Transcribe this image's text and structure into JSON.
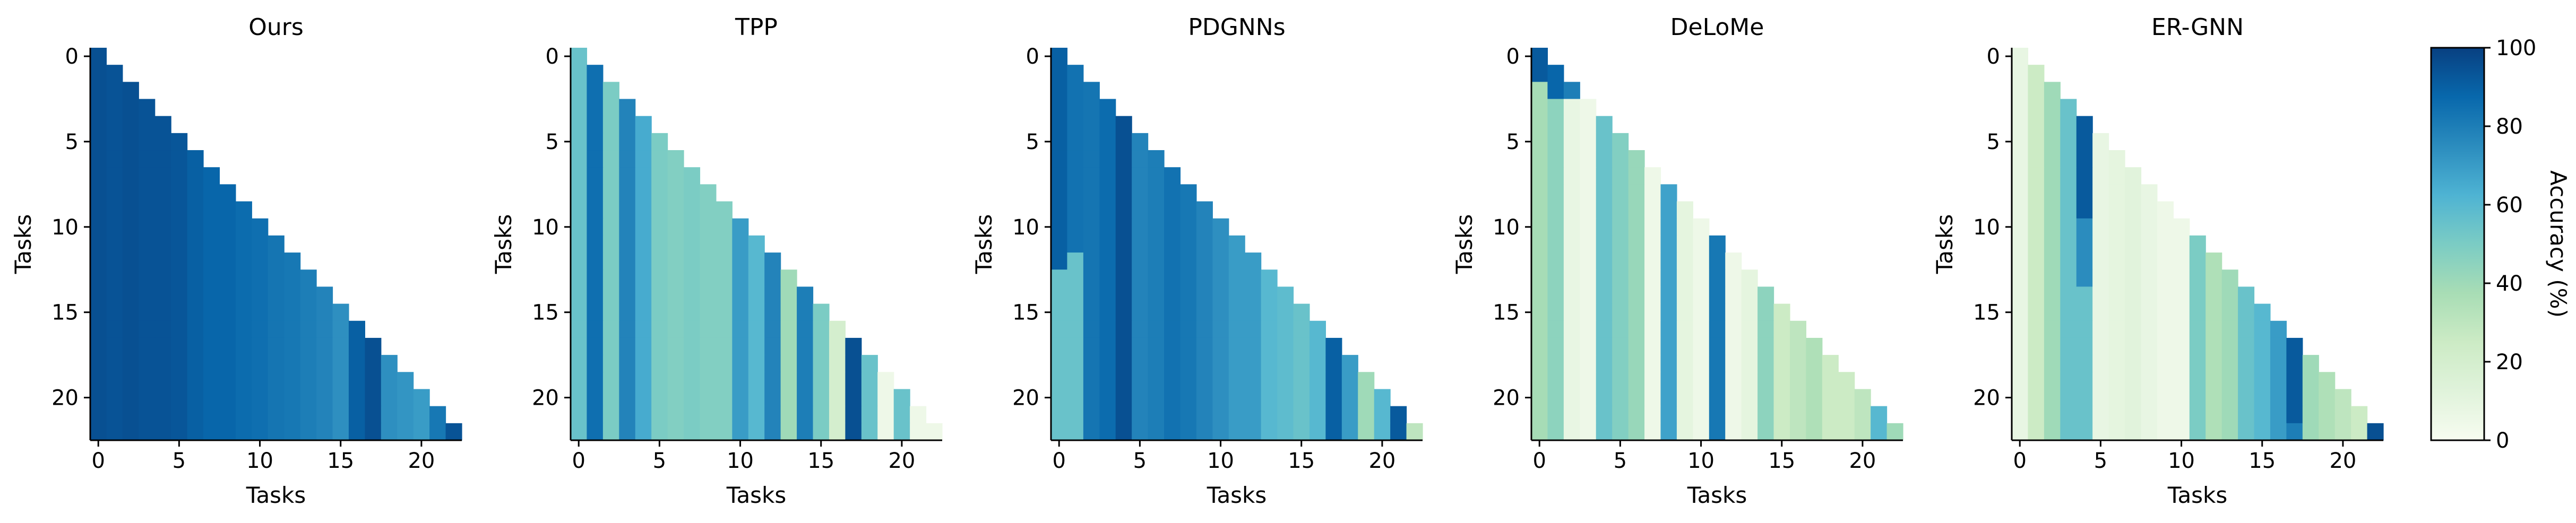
{
  "chart_data": {
    "type": "heatmap",
    "layout": "lower-triangular task accuracy matrices",
    "n_tasks": 23,
    "tick_values": [
      0,
      5,
      10,
      15,
      20
    ],
    "xlabel": "Tasks",
    "ylabel": "Tasks",
    "colormap": "GnBu",
    "colormap_stops": [
      "#f7fcf0",
      "#e0f3db",
      "#ccebc5",
      "#a8ddb5",
      "#7bccc4",
      "#4eb3d3",
      "#2b8cbe",
      "#0868ac",
      "#084081"
    ],
    "colorbar": {
      "label": "Accuracy (%)",
      "range": [
        0,
        100
      ],
      "ticks": [
        0,
        20,
        40,
        60,
        80,
        100
      ]
    },
    "panels": [
      {
        "title": "Ours",
        "column_accuracy": [
          95,
          94,
          95,
          94,
          94,
          93,
          90,
          88,
          88,
          86,
          85,
          83,
          82,
          80,
          78,
          74,
          90,
          95,
          74,
          72,
          70,
          82,
          94
        ],
        "overrides": []
      },
      {
        "title": "TPP",
        "column_accuracy": [
          55,
          85,
          50,
          78,
          65,
          50,
          48,
          50,
          48,
          48,
          70,
          60,
          78,
          40,
          80,
          50,
          20,
          95,
          55,
          5,
          55,
          5,
          5
        ],
        "overrides": []
      },
      {
        "title": "PDGNNs",
        "column_accuracy": [
          90,
          84,
          83,
          86,
          95,
          78,
          80,
          84,
          82,
          78,
          74,
          70,
          70,
          60,
          58,
          55,
          60,
          90,
          70,
          40,
          60,
          92,
          30
        ],
        "overrides": [
          {
            "col": 0,
            "from_row": 13,
            "accuracy": 55
          },
          {
            "col": 1,
            "from_row": 12,
            "accuracy": 55
          }
        ]
      },
      {
        "title": "DeLoMe",
        "column_accuracy": [
          38,
          45,
          8,
          5,
          55,
          48,
          42,
          5,
          68,
          10,
          5,
          82,
          5,
          10,
          45,
          25,
          30,
          35,
          25,
          25,
          30,
          60,
          40
        ],
        "overrides": [
          {
            "col": 0,
            "from_row": 0,
            "to_row": 1,
            "accuracy": 92
          },
          {
            "col": 1,
            "from_row": 1,
            "to_row": 2,
            "accuracy": 88
          },
          {
            "col": 2,
            "from_row": 2,
            "to_row": 2,
            "accuracy": 80
          }
        ]
      },
      {
        "title": "ER-GNN",
        "column_accuracy": [
          8,
          25,
          40,
          55,
          55,
          8,
          10,
          12,
          8,
          5,
          5,
          50,
          35,
          40,
          55,
          60,
          70,
          80,
          40,
          35,
          30,
          25,
          95
        ],
        "overrides": [
          {
            "col": 4,
            "from_row": 4,
            "to_row": 9,
            "accuracy": 92
          },
          {
            "col": 4,
            "from_row": 10,
            "to_row": 13,
            "accuracy": 75
          },
          {
            "col": 17,
            "from_row": 17,
            "to_row": 21,
            "accuracy": 92
          }
        ]
      }
    ]
  }
}
